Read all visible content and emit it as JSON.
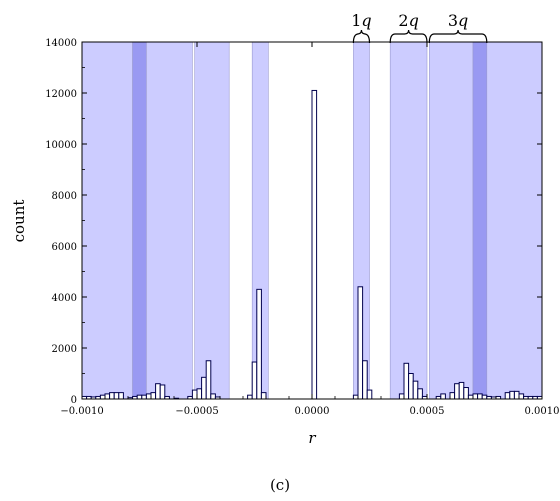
{
  "caption": "(c)",
  "chart_data": {
    "type": "bar",
    "xlabel": "r",
    "ylabel": "count",
    "xlim": [
      -0.001,
      0.001
    ],
    "ylim": [
      0,
      14000
    ],
    "x_ticks": [
      -0.001,
      -0.0005,
      0.0,
      0.0005,
      0.001
    ],
    "x_tick_labels": [
      "−0.0010",
      "−0.0005",
      "0.0000",
      "0.0005",
      "0.0010"
    ],
    "y_ticks": [
      0,
      2000,
      4000,
      6000,
      8000,
      10000,
      12000,
      14000
    ],
    "y_tick_labels": [
      "0",
      "2000",
      "4000",
      "6000",
      "8000",
      "10000",
      "12000",
      "14000"
    ],
    "bin_width": 2e-05,
    "bins": [
      {
        "x": -0.00099,
        "count": 100
      },
      {
        "x": -0.00097,
        "count": 100
      },
      {
        "x": -0.00095,
        "count": 80
      },
      {
        "x": -0.00093,
        "count": 100
      },
      {
        "x": -0.00091,
        "count": 150
      },
      {
        "x": -0.00089,
        "count": 200
      },
      {
        "x": -0.00087,
        "count": 250
      },
      {
        "x": -0.00085,
        "count": 250
      },
      {
        "x": -0.00083,
        "count": 250
      },
      {
        "x": -0.00079,
        "count": 50
      },
      {
        "x": -0.00077,
        "count": 100
      },
      {
        "x": -0.00075,
        "count": 150
      },
      {
        "x": -0.00073,
        "count": 150
      },
      {
        "x": -0.00071,
        "count": 200
      },
      {
        "x": -0.00069,
        "count": 250
      },
      {
        "x": -0.00067,
        "count": 600
      },
      {
        "x": -0.00065,
        "count": 550
      },
      {
        "x": -0.00063,
        "count": 100
      },
      {
        "x": -0.00059,
        "count": 30
      },
      {
        "x": -0.00053,
        "count": 100
      },
      {
        "x": -0.00051,
        "count": 350
      },
      {
        "x": -0.00049,
        "count": 400
      },
      {
        "x": -0.00047,
        "count": 850
      },
      {
        "x": -0.00045,
        "count": 1500
      },
      {
        "x": -0.00043,
        "count": 200
      },
      {
        "x": -0.00041,
        "count": 80
      },
      {
        "x": -0.00027,
        "count": 150
      },
      {
        "x": -0.00025,
        "count": 1450
      },
      {
        "x": -0.00023,
        "count": 4300
      },
      {
        "x": -0.00021,
        "count": 250
      },
      {
        "x": 1e-05,
        "count": 12100
      },
      {
        "x": 0.00019,
        "count": 150
      },
      {
        "x": 0.00021,
        "count": 4400
      },
      {
        "x": 0.00023,
        "count": 1500
      },
      {
        "x": 0.00025,
        "count": 350
      },
      {
        "x": 0.00039,
        "count": 200
      },
      {
        "x": 0.00041,
        "count": 1400
      },
      {
        "x": 0.00043,
        "count": 1000
      },
      {
        "x": 0.00045,
        "count": 700
      },
      {
        "x": 0.00047,
        "count": 400
      },
      {
        "x": 0.00049,
        "count": 100
      },
      {
        "x": 0.00055,
        "count": 100
      },
      {
        "x": 0.00057,
        "count": 200
      },
      {
        "x": 0.00061,
        "count": 250
      },
      {
        "x": 0.00063,
        "count": 600
      },
      {
        "x": 0.00065,
        "count": 650
      },
      {
        "x": 0.00067,
        "count": 450
      },
      {
        "x": 0.00069,
        "count": 150
      },
      {
        "x": 0.00071,
        "count": 200
      },
      {
        "x": 0.00073,
        "count": 200
      },
      {
        "x": 0.00075,
        "count": 150
      },
      {
        "x": 0.00077,
        "count": 100
      },
      {
        "x": 0.00079,
        "count": 80
      },
      {
        "x": 0.00081,
        "count": 100
      },
      {
        "x": 0.00085,
        "count": 250
      },
      {
        "x": 0.00087,
        "count": 300
      },
      {
        "x": 0.00089,
        "count": 300
      },
      {
        "x": 0.00091,
        "count": 200
      },
      {
        "x": 0.00093,
        "count": 100
      },
      {
        "x": 0.00095,
        "count": 100
      },
      {
        "x": 0.00097,
        "count": 100
      },
      {
        "x": 0.00099,
        "count": 100
      }
    ],
    "shaded_bands": [
      {
        "x0": -0.001,
        "x1": -0.00078,
        "shade": "light"
      },
      {
        "x0": -0.00078,
        "x1": -0.00072,
        "shade": "dark"
      },
      {
        "x0": -0.00072,
        "x1": -0.00052,
        "shade": "light"
      },
      {
        "x0": -0.00051,
        "x1": -0.00036,
        "shade": "light"
      },
      {
        "x0": -0.00026,
        "x1": -0.00019,
        "shade": "light"
      },
      {
        "x0": 0.00018,
        "x1": 0.00025,
        "shade": "light"
      },
      {
        "x0": 0.00034,
        "x1": 0.0005,
        "shade": "light"
      },
      {
        "x0": 0.00051,
        "x1": 0.0007,
        "shade": "light"
      },
      {
        "x0": 0.0007,
        "x1": 0.00076,
        "shade": "dark"
      },
      {
        "x0": 0.00076,
        "x1": 0.001,
        "shade": "light"
      }
    ],
    "braces": [
      {
        "label_num": "1",
        "label_var": "q",
        "x0": 0.00018,
        "x1": 0.00025
      },
      {
        "label_num": "2",
        "label_var": "q",
        "x0": 0.00034,
        "x1": 0.0005
      },
      {
        "label_num": "3",
        "label_var": "q",
        "x0": 0.00051,
        "x1": 0.00076
      }
    ],
    "colors": {
      "band_light": "#ccccff",
      "band_dark": "#9999f2",
      "band_edge": "#9a9ad0",
      "bar_fill": "#ffffff",
      "bar_stroke": "#00004d",
      "axis": "#000000"
    },
    "grid": false,
    "legend": "none"
  }
}
